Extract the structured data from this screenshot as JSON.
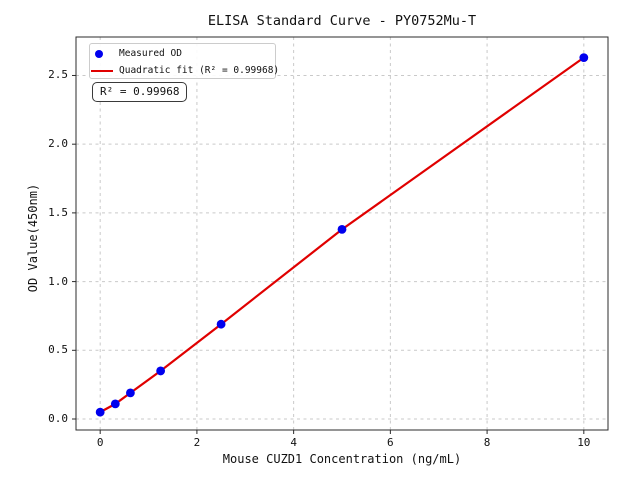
{
  "chart_data": {
    "type": "scatter",
    "title": "ELISA Standard Curve - PY0752Mu-T",
    "xlabel": "Mouse CUZD1 Concentration (ng/mL)",
    "ylabel": "OD Value(450nm)",
    "xlim": [
      -0.5,
      10.5
    ],
    "ylim": [
      -0.08,
      2.78
    ],
    "x_ticks": [
      0,
      2,
      4,
      6,
      8,
      10
    ],
    "x_tick_labels": [
      "0",
      "2",
      "4",
      "6",
      "8",
      "10"
    ],
    "y_ticks": [
      0.0,
      0.5,
      1.0,
      1.5,
      2.0,
      2.5
    ],
    "y_tick_labels": [
      "0.0",
      "0.5",
      "1.0",
      "1.5",
      "2.0",
      "2.5"
    ],
    "grid": true,
    "legend_position": "upper left",
    "annotation": "R² = 0.99968",
    "colors": {
      "measured": "#0000ee",
      "fit": "#e00000",
      "grid": "#c9c9c9",
      "spine": "#2b2b2b",
      "background": "#ffffff"
    },
    "series": [
      {
        "name": "Measured OD",
        "type": "scatter",
        "color": "#0000ee",
        "x": [
          0,
          0.313,
          0.625,
          1.25,
          2.5,
          5,
          10
        ],
        "y": [
          0.05,
          0.11,
          0.19,
          0.35,
          0.69,
          1.38,
          2.63
        ]
      },
      {
        "name": "Quadratic fit (R² = 0.99968)",
        "type": "line",
        "color": "#e00000",
        "x": [
          0,
          0.313,
          0.625,
          1.25,
          2.5,
          5,
          10
        ],
        "y": [
          0.05,
          0.11,
          0.19,
          0.35,
          0.69,
          1.38,
          2.63
        ]
      }
    ]
  }
}
